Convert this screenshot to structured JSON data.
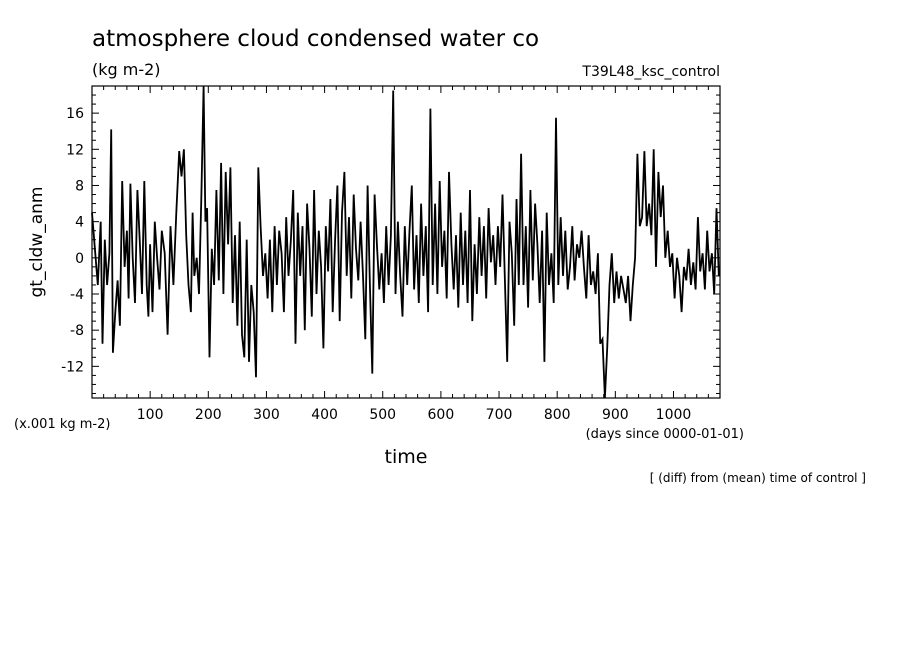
{
  "header": {
    "title": "atmosphere cloud condensed water co",
    "units": "(kg m-2)",
    "run_name": "T39L48_ksc_control",
    "note": "[ (diff) from (mean) time of control ]"
  },
  "chart_data": {
    "type": "line",
    "title": "atmosphere cloud condensed water co",
    "xlabel": "time",
    "ylabel": "gt_cldw_anm",
    "x_units": "(days since 0000-01-01)",
    "y_units": "(x.001 kg m-2)",
    "xlim": [
      0,
      1080
    ],
    "ylim": [
      -15.5,
      19
    ],
    "xticks": [
      100,
      200,
      300,
      400,
      500,
      600,
      700,
      800,
      900,
      1000
    ],
    "yticks": [
      -12,
      -8,
      -4,
      0,
      4,
      8,
      12,
      16
    ],
    "grid": false,
    "series": [
      {
        "points": [
          [
            0,
            5.0
          ],
          [
            5,
            1.0
          ],
          [
            10,
            -3.0
          ],
          [
            15,
            4.0
          ],
          [
            18,
            -9.5
          ],
          [
            22,
            2.0
          ],
          [
            26,
            -3.0
          ],
          [
            30,
            0.5
          ],
          [
            33,
            14.2
          ],
          [
            36,
            -10.5
          ],
          [
            40,
            -6.0
          ],
          [
            44,
            -2.5
          ],
          [
            48,
            -7.5
          ],
          [
            52,
            8.5
          ],
          [
            56,
            -1.0
          ],
          [
            60,
            3.0
          ],
          [
            63,
            -4.5
          ],
          [
            66,
            8.2
          ],
          [
            70,
            0.0
          ],
          [
            74,
            -5.0
          ],
          [
            78,
            7.5
          ],
          [
            82,
            2.0
          ],
          [
            86,
            -4.0
          ],
          [
            90,
            8.5
          ],
          [
            94,
            -3.0
          ],
          [
            97,
            -6.5
          ],
          [
            100,
            1.5
          ],
          [
            104,
            -6.0
          ],
          [
            108,
            4.0
          ],
          [
            112,
            0.0
          ],
          [
            116,
            -3.5
          ],
          [
            120,
            3.0
          ],
          [
            125,
            0.5
          ],
          [
            130,
            -8.5
          ],
          [
            135,
            3.5
          ],
          [
            140,
            -3.0
          ],
          [
            145,
            5.0
          ],
          [
            150,
            11.8
          ],
          [
            154,
            9.0
          ],
          [
            158,
            12.0
          ],
          [
            162,
            2.5
          ],
          [
            166,
            -3.0
          ],
          [
            170,
            -6.0
          ],
          [
            173,
            5.0
          ],
          [
            176,
            -2.0
          ],
          [
            180,
            0.0
          ],
          [
            184,
            -4.0
          ],
          [
            188,
            6.5
          ],
          [
            192,
            19.0
          ],
          [
            195,
            4.0
          ],
          [
            198,
            5.5
          ],
          [
            202,
            -11.0
          ],
          [
            206,
            1.0
          ],
          [
            210,
            -3.0
          ],
          [
            214,
            7.5
          ],
          [
            218,
            -2.5
          ],
          [
            222,
            10.5
          ],
          [
            226,
            -4.0
          ],
          [
            230,
            9.5
          ],
          [
            234,
            1.5
          ],
          [
            238,
            10.0
          ],
          [
            242,
            -5.0
          ],
          [
            246,
            2.5
          ],
          [
            250,
            -7.5
          ],
          [
            254,
            4.0
          ],
          [
            258,
            -8.5
          ],
          [
            262,
            -11.0
          ],
          [
            266,
            2.0
          ],
          [
            270,
            -11.5
          ],
          [
            274,
            -3.0
          ],
          [
            278,
            -6.0
          ],
          [
            282,
            -13.2
          ],
          [
            286,
            10.0
          ],
          [
            290,
            3.5
          ],
          [
            294,
            -2.0
          ],
          [
            298,
            0.5
          ],
          [
            302,
            -4.5
          ],
          [
            306,
            2.0
          ],
          [
            310,
            -6.0
          ],
          [
            314,
            3.5
          ],
          [
            318,
            -3.0
          ],
          [
            322,
            3.0
          ],
          [
            326,
            0.5
          ],
          [
            330,
            -6.0
          ],
          [
            334,
            4.5
          ],
          [
            338,
            -2.0
          ],
          [
            342,
            2.0
          ],
          [
            346,
            7.5
          ],
          [
            350,
            -9.5
          ],
          [
            354,
            5.0
          ],
          [
            358,
            -2.0
          ],
          [
            362,
            3.5
          ],
          [
            366,
            -8.0
          ],
          [
            370,
            6.0
          ],
          [
            374,
            1.0
          ],
          [
            378,
            -6.5
          ],
          [
            382,
            7.5
          ],
          [
            386,
            -4.0
          ],
          [
            390,
            3.0
          ],
          [
            394,
            -1.0
          ],
          [
            398,
            -10.0
          ],
          [
            402,
            3.5
          ],
          [
            406,
            -1.5
          ],
          [
            410,
            6.5
          ],
          [
            414,
            -6.0
          ],
          [
            418,
            2.0
          ],
          [
            422,
            8.0
          ],
          [
            426,
            -7.0
          ],
          [
            430,
            5.0
          ],
          [
            434,
            9.5
          ],
          [
            438,
            -2.0
          ],
          [
            442,
            4.5
          ],
          [
            446,
            -4.5
          ],
          [
            450,
            7.0
          ],
          [
            454,
            1.0
          ],
          [
            458,
            -2.5
          ],
          [
            462,
            4.0
          ],
          [
            466,
            -2.0
          ],
          [
            470,
            -9.0
          ],
          [
            474,
            8.0
          ],
          [
            478,
            -3.0
          ],
          [
            482,
            -12.8
          ],
          [
            486,
            7.0
          ],
          [
            490,
            1.5
          ],
          [
            494,
            -3.5
          ],
          [
            498,
            0.5
          ],
          [
            502,
            -5.0
          ],
          [
            506,
            3.5
          ],
          [
            510,
            -3.0
          ],
          [
            514,
            2.5
          ],
          [
            518,
            18.5
          ],
          [
            522,
            -4.0
          ],
          [
            526,
            4.0
          ],
          [
            530,
            -2.0
          ],
          [
            534,
            -6.5
          ],
          [
            538,
            3.5
          ],
          [
            542,
            -3.0
          ],
          [
            546,
            3.0
          ],
          [
            550,
            8.0
          ],
          [
            554,
            -3.5
          ],
          [
            558,
            2.5
          ],
          [
            562,
            -5.0
          ],
          [
            566,
            6.0
          ],
          [
            570,
            -2.0
          ],
          [
            574,
            3.5
          ],
          [
            578,
            -6.0
          ],
          [
            582,
            16.5
          ],
          [
            586,
            -3.0
          ],
          [
            590,
            6.0
          ],
          [
            594,
            -4.0
          ],
          [
            598,
            8.5
          ],
          [
            602,
            -1.0
          ],
          [
            606,
            3.0
          ],
          [
            610,
            -4.5
          ],
          [
            614,
            9.5
          ],
          [
            618,
            1.5
          ],
          [
            622,
            -3.5
          ],
          [
            626,
            2.5
          ],
          [
            630,
            -5.5
          ],
          [
            634,
            5.0
          ],
          [
            638,
            -3.0
          ],
          [
            642,
            3.0
          ],
          [
            646,
            -5.0
          ],
          [
            650,
            7.5
          ],
          [
            654,
            -7.0
          ],
          [
            658,
            1.5
          ],
          [
            662,
            -4.0
          ],
          [
            666,
            4.5
          ],
          [
            670,
            -2.0
          ],
          [
            674,
            3.5
          ],
          [
            678,
            -4.5
          ],
          [
            682,
            5.5
          ],
          [
            686,
            -0.5
          ],
          [
            690,
            2.5
          ],
          [
            694,
            -3.0
          ],
          [
            698,
            3.5
          ],
          [
            702,
            -1.0
          ],
          [
            706,
            7.0
          ],
          [
            710,
            -2.5
          ],
          [
            714,
            -11.5
          ],
          [
            718,
            4.0
          ],
          [
            722,
            0.5
          ],
          [
            726,
            -7.5
          ],
          [
            730,
            6.5
          ],
          [
            734,
            -3.0
          ],
          [
            738,
            11.5
          ],
          [
            742,
            -3.0
          ],
          [
            746,
            3.5
          ],
          [
            750,
            -5.5
          ],
          [
            754,
            7.5
          ],
          [
            758,
            -2.5
          ],
          [
            762,
            6.0
          ],
          [
            766,
            1.5
          ],
          [
            770,
            -5.0
          ],
          [
            774,
            3.0
          ],
          [
            778,
            -11.5
          ],
          [
            782,
            5.0
          ],
          [
            786,
            -3.0
          ],
          [
            790,
            0.5
          ],
          [
            794,
            -5.0
          ],
          [
            798,
            15.5
          ],
          [
            802,
            -3.0
          ],
          [
            806,
            4.5
          ],
          [
            810,
            -2.0
          ],
          [
            814,
            3.0
          ],
          [
            818,
            -3.5
          ],
          [
            822,
            -1.0
          ],
          [
            826,
            3.5
          ],
          [
            830,
            -2.5
          ],
          [
            834,
            1.5
          ],
          [
            838,
            0.0
          ],
          [
            842,
            3.0
          ],
          [
            846,
            -1.0
          ],
          [
            850,
            -4.5
          ],
          [
            854,
            2.5
          ],
          [
            858,
            -3.0
          ],
          [
            862,
            -1.5
          ],
          [
            866,
            -4.0
          ],
          [
            870,
            0.5
          ],
          [
            874,
            -9.5
          ],
          [
            878,
            -9.0
          ],
          [
            882,
            -15.5
          ],
          [
            886,
            -10.0
          ],
          [
            890,
            -3.0
          ],
          [
            894,
            0.5
          ],
          [
            898,
            -5.0
          ],
          [
            902,
            -1.5
          ],
          [
            906,
            -4.5
          ],
          [
            910,
            -2.0
          ],
          [
            914,
            -3.5
          ],
          [
            918,
            -5.0
          ],
          [
            922,
            -2.0
          ],
          [
            926,
            -7.0
          ],
          [
            930,
            -3.0
          ],
          [
            934,
            0.0
          ],
          [
            938,
            11.5
          ],
          [
            942,
            3.5
          ],
          [
            946,
            4.5
          ],
          [
            950,
            11.8
          ],
          [
            954,
            3.5
          ],
          [
            958,
            6.0
          ],
          [
            962,
            2.5
          ],
          [
            966,
            12.0
          ],
          [
            970,
            -1.0
          ],
          [
            974,
            9.5
          ],
          [
            978,
            4.5
          ],
          [
            982,
            8.0
          ],
          [
            986,
            0.0
          ],
          [
            990,
            3.0
          ],
          [
            994,
            -1.0
          ],
          [
            998,
            0.5
          ],
          [
            1002,
            -4.5
          ],
          [
            1006,
            0.0
          ],
          [
            1010,
            -2.0
          ],
          [
            1014,
            -6.0
          ],
          [
            1018,
            -1.0
          ],
          [
            1022,
            -2.5
          ],
          [
            1026,
            1.0
          ],
          [
            1030,
            -3.0
          ],
          [
            1034,
            -0.5
          ],
          [
            1038,
            -3.5
          ],
          [
            1042,
            4.5
          ],
          [
            1046,
            -1.5
          ],
          [
            1050,
            0.5
          ],
          [
            1054,
            -3.5
          ],
          [
            1058,
            3.0
          ],
          [
            1062,
            -1.5
          ],
          [
            1066,
            0.5
          ],
          [
            1070,
            -4.0
          ],
          [
            1074,
            5.5
          ],
          [
            1078,
            -2.0
          ]
        ]
      }
    ]
  }
}
